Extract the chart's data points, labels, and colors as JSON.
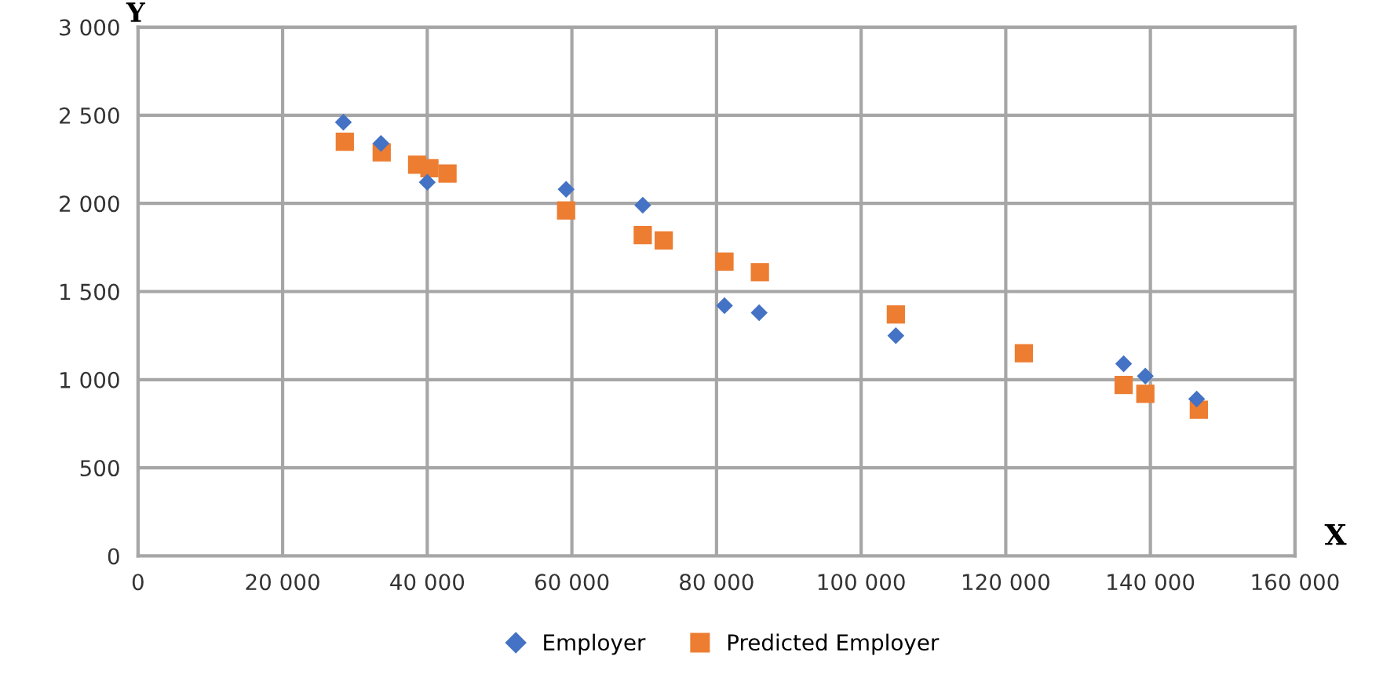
{
  "chart_data": {
    "type": "scatter",
    "xlabel": "X",
    "ylabel": "Y",
    "xlim": [
      0,
      160000
    ],
    "ylim": [
      0,
      3000
    ],
    "xticks": [
      0,
      {
        "value": 20000,
        "label": "20 000"
      },
      {
        "value": 40000,
        "label": "40 000"
      },
      {
        "value": 60000,
        "label": "60 000"
      },
      {
        "value": 80000,
        "label": "80 000"
      },
      {
        "value": 100000,
        "label": "100 000"
      },
      {
        "value": 120000,
        "label": "120 000"
      },
      {
        "value": 140000,
        "label": "140 000"
      },
      {
        "value": 160000,
        "label": "160 000"
      }
    ],
    "yticks": [
      0,
      500,
      {
        "value": 1000,
        "label": "1 000"
      },
      {
        "value": 1500,
        "label": "1 500"
      },
      {
        "value": 2000,
        "label": "2 000"
      },
      {
        "value": 2500,
        "label": "2 500"
      },
      {
        "value": 3000,
        "label": "3 000"
      }
    ],
    "grid": true,
    "legend": "bottom",
    "series": [
      {
        "name": "Employer",
        "color": "#4472c4",
        "marker": "diamond",
        "x": [
          28400,
          33600,
          40000,
          59200,
          69800,
          81100,
          85900,
          104800,
          136300,
          139300,
          146400
        ],
        "values": [
          2460,
          2340,
          2120,
          2080,
          1990,
          1420,
          1380,
          1250,
          1090,
          1020,
          890
        ]
      },
      {
        "name": "Predicted Employer",
        "color": "#ed7d31",
        "marker": "square",
        "x": [
          28600,
          33700,
          38600,
          40300,
          42800,
          59200,
          69800,
          72700,
          81100,
          86000,
          104800,
          122500,
          136300,
          139300,
          146700
        ],
        "values": [
          2350,
          2290,
          2220,
          2200,
          2170,
          1960,
          1820,
          1790,
          1670,
          1610,
          1370,
          1150,
          970,
          920,
          830
        ]
      }
    ]
  }
}
